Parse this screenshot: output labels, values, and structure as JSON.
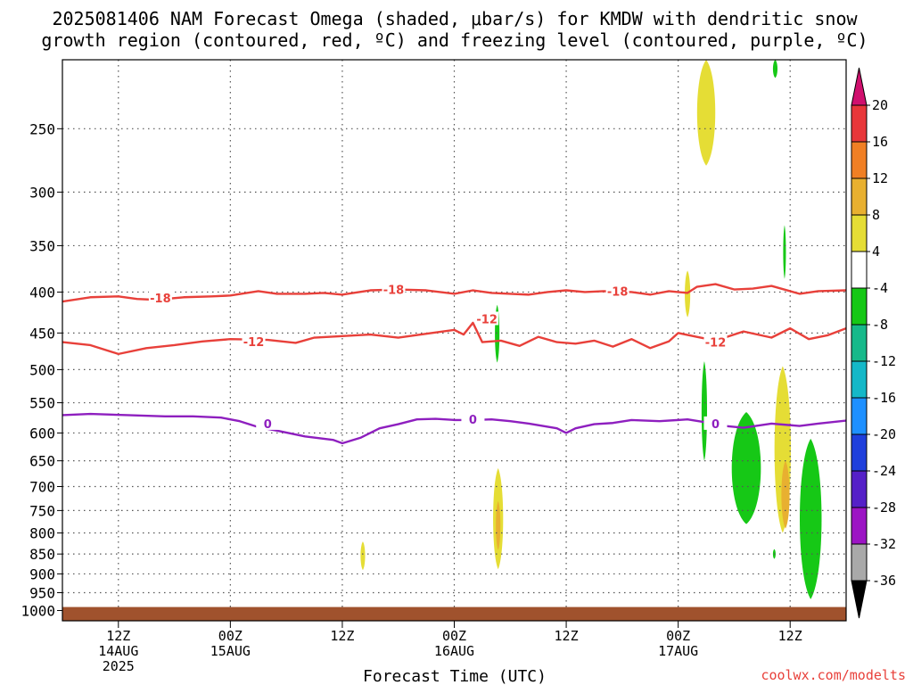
{
  "title_line1": "2025081406 NAM Forecast Omega (shaded, μbar/s) for KMDW with dendritic snow",
  "title_line2": "growth region (contoured, red, ºC) and freezing level (contoured, purple, ºC)",
  "source": "coolwx.com/modelts",
  "colors": {
    "red_contour": "#e8403a",
    "purple_contour": "#8e1fbf",
    "ground": "#a0522d",
    "grid": "#555555"
  },
  "chart_data": {
    "type": "heatmap",
    "xlabel": "Forecast Time (UTC)",
    "ylabel": "",
    "y_axis": {
      "units": "hPa",
      "scale": "log",
      "inverted": true,
      "range": [
        205,
        1030
      ],
      "ticks": [
        250,
        300,
        350,
        400,
        450,
        500,
        550,
        600,
        650,
        700,
        750,
        800,
        850,
        900,
        950,
        1000
      ]
    },
    "x_axis": {
      "range_hours": [
        0,
        84
      ],
      "ticks": [
        {
          "hour": 6,
          "labels": [
            "12Z",
            "14AUG",
            "2025"
          ]
        },
        {
          "hour": 18,
          "labels": [
            "00Z",
            "15AUG"
          ]
        },
        {
          "hour": 30,
          "labels": [
            "12Z"
          ]
        },
        {
          "hour": 42,
          "labels": [
            "00Z",
            "16AUG"
          ]
        },
        {
          "hour": 54,
          "labels": [
            "12Z"
          ]
        },
        {
          "hour": 66,
          "labels": [
            "00Z",
            "17AUG"
          ]
        },
        {
          "hour": 78,
          "labels": [
            "12Z"
          ]
        }
      ]
    },
    "grid": true,
    "colorbar": {
      "labels": [
        "20",
        "16",
        "12",
        "8",
        "4",
        "-4",
        "-8",
        "-12",
        "-16",
        "-20",
        "-24",
        "-28",
        "-32",
        "-36"
      ],
      "colors": [
        "#e8373a",
        "#f07f24",
        "#e8b030",
        "#e5dd35",
        "#ffffff",
        "#16c816",
        "#17b98a",
        "#14b8c8",
        "#1e90ff",
        "#1f3fdc",
        "#5520c8",
        "#9c14c4",
        "#a9a9a9"
      ],
      "top_arrow_color": "#d0106e",
      "bottom_arrow_color": "#000000"
    },
    "contours": [
      {
        "label": "-18",
        "color": "#e8403a",
        "points": [
          [
            0,
            411
          ],
          [
            3,
            406
          ],
          [
            6,
            405
          ],
          [
            8,
            408
          ],
          [
            10,
            409
          ],
          [
            13,
            406
          ],
          [
            16,
            405
          ],
          [
            18,
            404
          ],
          [
            21,
            399
          ],
          [
            23,
            402
          ],
          [
            26,
            402
          ],
          [
            28,
            401
          ],
          [
            30,
            403
          ],
          [
            33,
            398
          ],
          [
            36,
            397
          ],
          [
            39,
            398
          ],
          [
            42,
            402
          ],
          [
            44,
            398
          ],
          [
            46,
            401
          ],
          [
            48,
            402
          ],
          [
            50,
            403
          ],
          [
            52,
            400
          ],
          [
            54,
            398
          ],
          [
            56,
            400
          ],
          [
            58,
            399
          ],
          [
            61,
            400
          ],
          [
            63,
            403
          ],
          [
            65,
            399
          ],
          [
            67,
            401
          ],
          [
            68,
            394
          ],
          [
            70,
            391
          ],
          [
            72,
            397
          ],
          [
            74,
            396
          ],
          [
            76,
            393
          ],
          [
            79,
            402
          ],
          [
            81,
            399
          ],
          [
            84,
            398
          ]
        ],
        "label_positions": [
          [
            10.5,
            407
          ],
          [
            35.5,
            397
          ],
          [
            59.5,
            399
          ]
        ]
      },
      {
        "label": "-12",
        "color": "#e8403a",
        "points": [
          [
            0,
            462
          ],
          [
            3,
            466
          ],
          [
            6,
            478
          ],
          [
            9,
            470
          ],
          [
            12,
            466
          ],
          [
            15,
            461
          ],
          [
            18,
            458
          ],
          [
            22,
            459
          ],
          [
            25,
            463
          ],
          [
            27,
            456
          ],
          [
            30,
            454
          ],
          [
            33,
            452
          ],
          [
            36,
            456
          ],
          [
            39,
            451
          ],
          [
            42,
            446
          ],
          [
            43,
            452
          ],
          [
            44,
            437
          ],
          [
            45,
            462
          ],
          [
            47,
            460
          ],
          [
            49,
            467
          ],
          [
            51,
            455
          ],
          [
            53,
            462
          ],
          [
            55,
            464
          ],
          [
            57,
            460
          ],
          [
            59,
            468
          ],
          [
            61,
            458
          ],
          [
            63,
            470
          ],
          [
            65,
            461
          ],
          [
            66,
            450
          ],
          [
            68,
            455
          ],
          [
            70,
            460
          ],
          [
            73,
            448
          ],
          [
            76,
            456
          ],
          [
            78,
            444
          ],
          [
            80,
            458
          ],
          [
            82,
            453
          ],
          [
            84,
            444
          ]
        ],
        "label_positions": [
          [
            20.5,
            461
          ],
          [
            45.5,
            432
          ],
          [
            70,
            462
          ]
        ]
      },
      {
        "label": "0",
        "color": "#8e1fbf",
        "points": [
          [
            0,
            570
          ],
          [
            3,
            568
          ],
          [
            7,
            570
          ],
          [
            11,
            572
          ],
          [
            14,
            572
          ],
          [
            17,
            574
          ],
          [
            19,
            580
          ],
          [
            21,
            590
          ],
          [
            23,
            596
          ],
          [
            26,
            606
          ],
          [
            29,
            612
          ],
          [
            30,
            618
          ],
          [
            32,
            608
          ],
          [
            34,
            592
          ],
          [
            36,
            585
          ],
          [
            38,
            577
          ],
          [
            40,
            576
          ],
          [
            42,
            578
          ],
          [
            44,
            578
          ],
          [
            46,
            577
          ],
          [
            48,
            580
          ],
          [
            50,
            584
          ],
          [
            53,
            592
          ],
          [
            54,
            600
          ],
          [
            55,
            592
          ],
          [
            57,
            585
          ],
          [
            59,
            583
          ],
          [
            61,
            578
          ],
          [
            64,
            580
          ],
          [
            67,
            577
          ],
          [
            69,
            582
          ],
          [
            71,
            588
          ],
          [
            73,
            591
          ],
          [
            76,
            584
          ],
          [
            79,
            588
          ],
          [
            81,
            584
          ],
          [
            84,
            579
          ]
        ],
        "label_positions": [
          [
            22,
            584
          ],
          [
            44,
            577
          ],
          [
            70,
            584
          ]
        ]
      }
    ],
    "omega_regions": [
      {
        "value": 6,
        "color": "#e5dd35",
        "hour": 69,
        "p_top": 205,
        "p_bottom": 278,
        "half_width_h": 1.0
      },
      {
        "value": 6,
        "color": "#e5dd35",
        "hour": 67,
        "p_top": 376,
        "p_bottom": 430,
        "half_width_h": 0.3
      },
      {
        "value": 6,
        "color": "#e5dd35",
        "hour": 46.7,
        "p_top": 664,
        "p_bottom": 888,
        "half_width_h": 0.55
      },
      {
        "value": 10,
        "color": "#e8b030",
        "hour": 46.7,
        "p_top": 730,
        "p_bottom": 840,
        "half_width_h": 0.25
      },
      {
        "value": 6,
        "color": "#e5dd35",
        "hour": 32.2,
        "p_top": 820,
        "p_bottom": 890,
        "half_width_h": 0.25
      },
      {
        "value": 6,
        "color": "#e5dd35",
        "hour": 77.2,
        "p_top": 495,
        "p_bottom": 800,
        "half_width_h": 0.9
      },
      {
        "value": 10,
        "color": "#e8b030",
        "hour": 77.5,
        "p_top": 650,
        "p_bottom": 790,
        "half_width_h": 0.45
      },
      {
        "value": -6,
        "color": "#16c816",
        "hour": 46.6,
        "p_top": 415,
        "p_bottom": 490,
        "half_width_h": 0.25
      },
      {
        "value": -6,
        "color": "#16c816",
        "hour": 76.4,
        "p_top": 205,
        "p_bottom": 216,
        "half_width_h": 0.25
      },
      {
        "value": -6,
        "color": "#16c816",
        "hour": 77.4,
        "p_top": 330,
        "p_bottom": 385,
        "half_width_h": 0.15
      },
      {
        "value": -6,
        "color": "#16c816",
        "hour": 68.8,
        "p_top": 488,
        "p_bottom": 650,
        "half_width_h": 0.3
      },
      {
        "value": -6,
        "color": "#16c816",
        "hour": 73.3,
        "p_top": 565,
        "p_bottom": 780,
        "half_width_h": 1.6
      },
      {
        "value": -6,
        "color": "#16c816",
        "hour": 80.2,
        "p_top": 610,
        "p_bottom": 968,
        "half_width_h": 1.2
      },
      {
        "value": -6,
        "color": "#16c816",
        "hour": 76.3,
        "p_top": 838,
        "p_bottom": 862,
        "half_width_h": 0.15
      }
    ],
    "ground_pressure": 990
  }
}
